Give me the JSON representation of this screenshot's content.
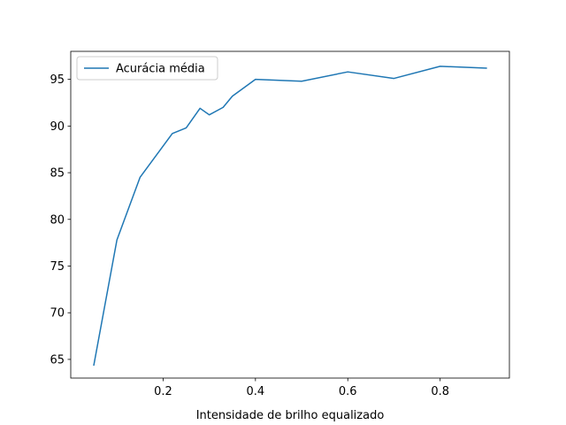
{
  "chart_data": {
    "type": "line",
    "title": "",
    "xlabel": "Intensidade de brilho equalizado",
    "ylabel": "",
    "xlim": [
      0.0,
      0.95
    ],
    "ylim": [
      63.0,
      98.0
    ],
    "x_ticks": [
      0.2,
      0.4,
      0.6,
      0.8
    ],
    "x_tick_labels": [
      "0.2",
      "0.4",
      "0.6",
      "0.8"
    ],
    "y_ticks": [
      65,
      70,
      75,
      80,
      85,
      90,
      95
    ],
    "y_tick_labels": [
      "65",
      "70",
      "75",
      "80",
      "85",
      "90",
      "95"
    ],
    "grid": false,
    "legend": {
      "position": "top-left"
    },
    "series": [
      {
        "name": "Acurácia média",
        "color": "#1f77b4",
        "x": [
          0.05,
          0.1,
          0.15,
          0.22,
          0.25,
          0.28,
          0.3,
          0.33,
          0.35,
          0.4,
          0.5,
          0.6,
          0.7,
          0.8,
          0.9
        ],
        "y": [
          64.4,
          77.8,
          84.5,
          89.2,
          89.8,
          91.9,
          91.2,
          92.0,
          93.2,
          95.0,
          94.8,
          95.8,
          95.1,
          96.4,
          96.2
        ]
      }
    ]
  }
}
